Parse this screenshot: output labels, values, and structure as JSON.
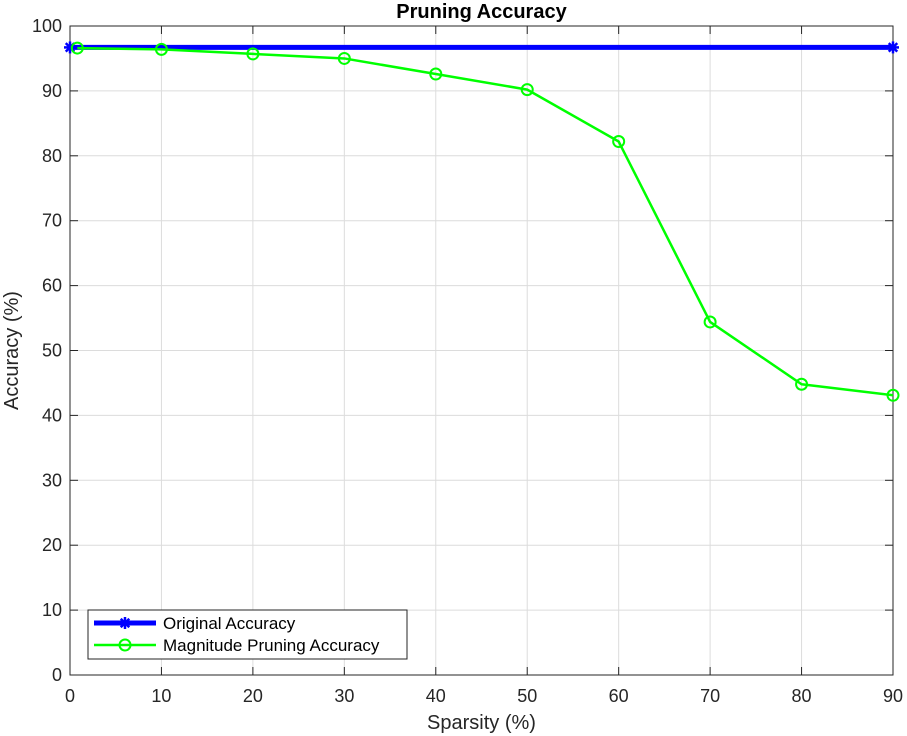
{
  "chart_data": {
    "type": "line",
    "title": "Pruning Accuracy",
    "xlabel": "Sparsity (%)",
    "ylabel": "Accuracy (%)",
    "xlim": [
      0,
      90
    ],
    "ylim": [
      0,
      100
    ],
    "xticks": [
      0,
      10,
      20,
      30,
      40,
      50,
      60,
      70,
      80,
      90
    ],
    "yticks": [
      0,
      10,
      20,
      30,
      40,
      50,
      60,
      70,
      80,
      90,
      100
    ],
    "grid": true,
    "legend_position": "bottom-left",
    "series": [
      {
        "name": "Original Accuracy",
        "color": "#0000FF",
        "marker": "star",
        "x": [
          0,
          90
        ],
        "y": [
          96.7,
          96.7
        ]
      },
      {
        "name": "Magnitude Pruning Accuracy",
        "color": "#00FF00",
        "marker": "circle",
        "x": [
          0.8,
          10,
          20,
          30,
          40,
          50,
          60,
          70,
          80,
          90
        ],
        "y": [
          96.6,
          96.4,
          95.7,
          95.0,
          92.6,
          90.2,
          82.2,
          54.4,
          44.8,
          43.1
        ]
      }
    ]
  }
}
